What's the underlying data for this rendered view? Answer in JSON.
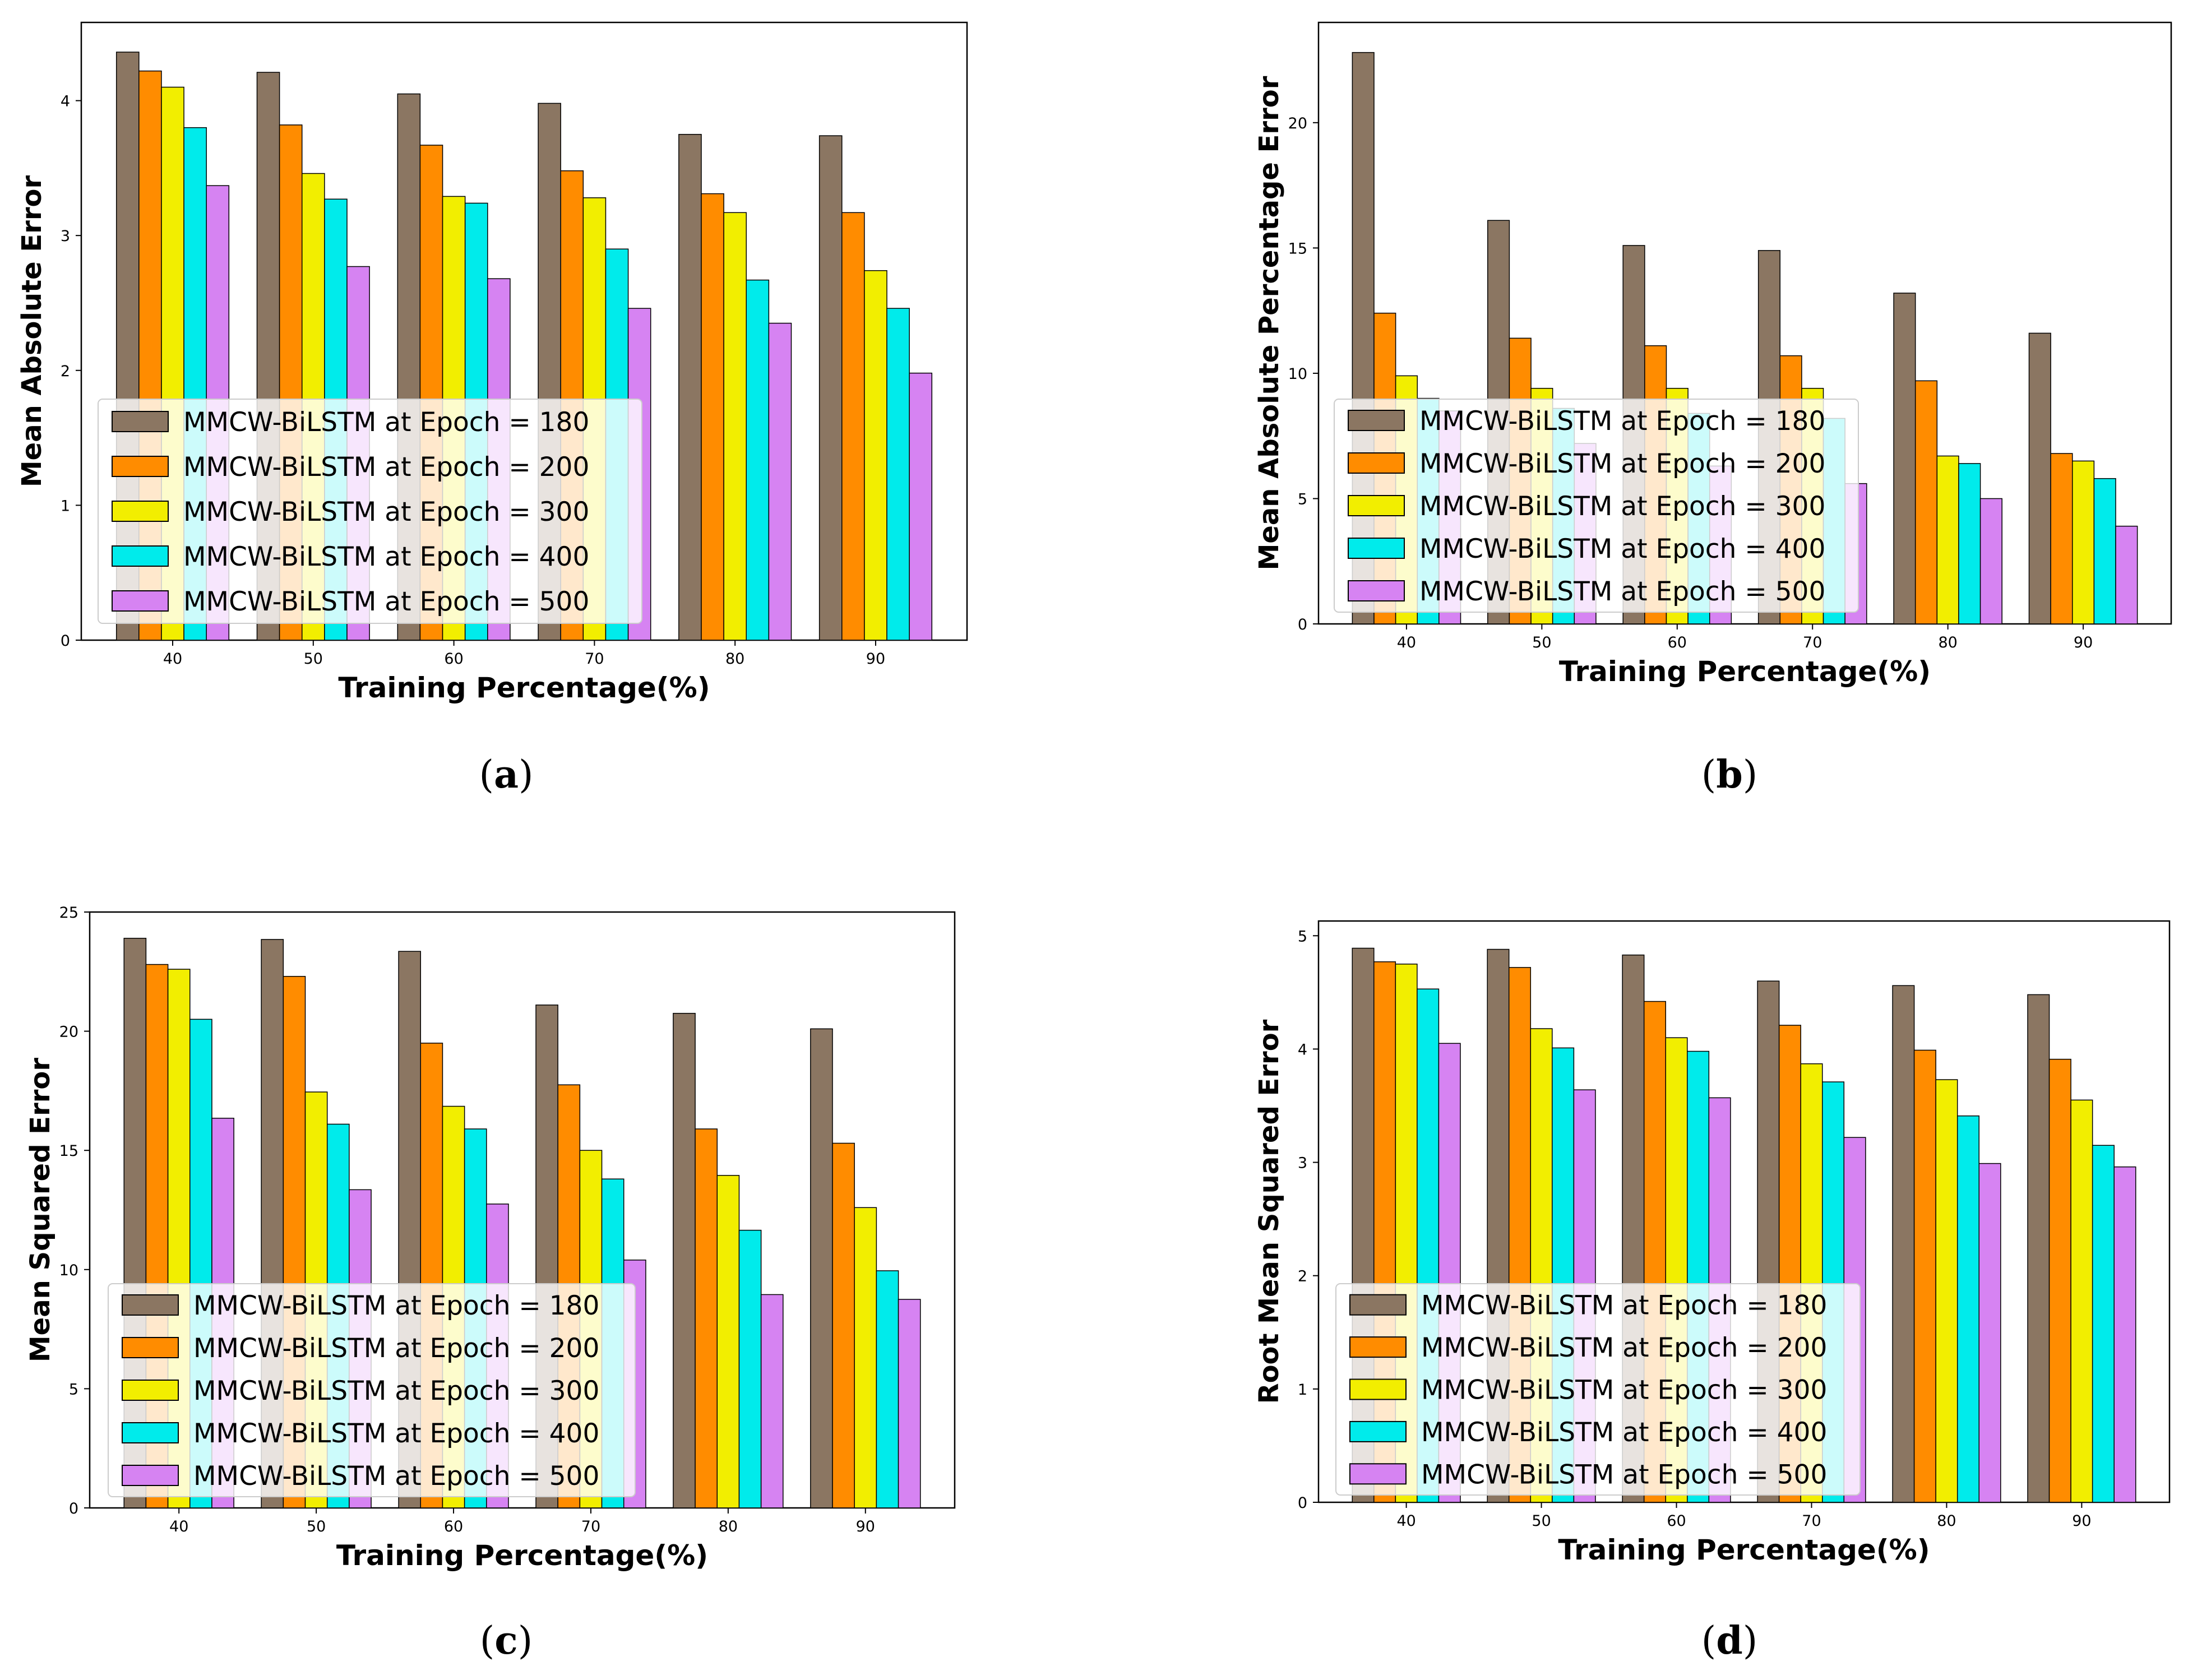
{
  "colors": {
    "epoch_180": "#8b7662",
    "epoch_200": "#ff8c00",
    "epoch_300": "#f2ee00",
    "epoch_400": "#00ebeb",
    "epoch_500": "#d683f2",
    "bar_edge": "#000000",
    "legend_edge": "#cccccc"
  },
  "panels": [
    {
      "caption": "(a)",
      "caption_open": "(",
      "caption_letter": "a",
      "caption_close": ")",
      "chart_data": {
        "type": "bar",
        "title": "",
        "xlabel": "Training Percentage(%)",
        "ylabel": "Mean Absolute Error",
        "categories": [
          "40",
          "50",
          "60",
          "70",
          "80",
          "90"
        ],
        "ylim": [
          0,
          4.58
        ],
        "yticks": [
          0,
          1,
          2,
          3,
          4
        ],
        "legend_position": "lower-left",
        "series": [
          {
            "name": "MMCW-BiLSTM at Epoch = 180",
            "values": [
              4.36,
              4.21,
              4.05,
              3.98,
              3.75,
              3.74
            ]
          },
          {
            "name": "MMCW-BiLSTM at Epoch = 200",
            "values": [
              4.22,
              3.82,
              3.67,
              3.48,
              3.31,
              3.17
            ]
          },
          {
            "name": "MMCW-BiLSTM at Epoch = 300",
            "values": [
              4.1,
              3.46,
              3.29,
              3.28,
              3.17,
              2.74
            ]
          },
          {
            "name": "MMCW-BiLSTM at Epoch = 400",
            "values": [
              3.8,
              3.27,
              3.24,
              2.9,
              2.67,
              2.46
            ]
          },
          {
            "name": "MMCW-BiLSTM at Epoch = 500",
            "values": [
              3.37,
              2.77,
              2.68,
              2.46,
              2.35,
              1.98
            ]
          }
        ]
      }
    },
    {
      "caption": "(b)",
      "caption_open": "(",
      "caption_letter": "b",
      "caption_close": ")",
      "chart_data": {
        "type": "bar",
        "title": "",
        "xlabel": "Training Percentage(%)",
        "ylabel": "Mean Absolute Percentage Error",
        "categories": [
          "40",
          "50",
          "60",
          "70",
          "80",
          "90"
        ],
        "ylim": [
          0,
          24.0
        ],
        "yticks": [
          0,
          5,
          10,
          15,
          20
        ],
        "legend_position": "lower-left",
        "series": [
          {
            "name": "MMCW-BiLSTM at Epoch = 180",
            "values": [
              22.8,
              16.1,
              15.1,
              14.9,
              13.2,
              11.6
            ]
          },
          {
            "name": "MMCW-BiLSTM at Epoch = 200",
            "values": [
              12.4,
              11.4,
              11.1,
              10.7,
              9.7,
              6.8
            ]
          },
          {
            "name": "MMCW-BiLSTM at Epoch = 300",
            "values": [
              9.9,
              9.4,
              9.4,
              9.4,
              6.7,
              6.5
            ]
          },
          {
            "name": "MMCW-BiLSTM at Epoch = 400",
            "values": [
              9.0,
              8.6,
              8.4,
              8.2,
              6.4,
              5.8
            ]
          },
          {
            "name": "MMCW-BiLSTM at Epoch = 500",
            "values": [
              8.5,
              7.2,
              6.3,
              5.6,
              5.0,
              3.9
            ]
          }
        ]
      }
    },
    {
      "caption": "(c)",
      "caption_open": "(",
      "caption_letter": "c",
      "caption_close": ")",
      "chart_data": {
        "type": "bar",
        "title": "",
        "xlabel": "Training Percentage(%)",
        "ylabel": "Mean Squared Error",
        "categories": [
          "40",
          "50",
          "60",
          "70",
          "80",
          "90"
        ],
        "ylim": [
          0,
          25.0
        ],
        "yticks": [
          0,
          5,
          10,
          15,
          20,
          25
        ],
        "legend_position": "lower-left",
        "series": [
          {
            "name": "MMCW-BiLSTM at Epoch = 180",
            "values": [
              23.9,
              23.85,
              23.35,
              21.1,
              20.75,
              20.1
            ]
          },
          {
            "name": "MMCW-BiLSTM at Epoch = 200",
            "values": [
              22.8,
              22.3,
              19.5,
              17.75,
              15.9,
              15.3
            ]
          },
          {
            "name": "MMCW-BiLSTM at Epoch = 300",
            "values": [
              22.6,
              17.45,
              16.85,
              15.0,
              13.95,
              12.6
            ]
          },
          {
            "name": "MMCW-BiLSTM at Epoch = 400",
            "values": [
              20.5,
              16.1,
              15.9,
              13.8,
              11.65,
              9.95
            ]
          },
          {
            "name": "MMCW-BiLSTM at Epoch = 500",
            "values": [
              16.35,
              13.35,
              12.75,
              10.4,
              8.95,
              8.75
            ]
          }
        ]
      }
    },
    {
      "caption": "(d)",
      "caption_open": "(",
      "caption_letter": "d",
      "caption_close": ")",
      "chart_data": {
        "type": "bar",
        "title": "",
        "xlabel": "Training Percentage(%)",
        "ylabel": "Root Mean Squared Error",
        "categories": [
          "40",
          "50",
          "60",
          "70",
          "80",
          "90"
        ],
        "ylim": [
          0,
          5.13
        ],
        "yticks": [
          0,
          1,
          2,
          3,
          4,
          5
        ],
        "legend_position": "lower-left",
        "series": [
          {
            "name": "MMCW-BiLSTM at Epoch = 180",
            "values": [
              4.89,
              4.88,
              4.83,
              4.6,
              4.56,
              4.48
            ]
          },
          {
            "name": "MMCW-BiLSTM at Epoch = 200",
            "values": [
              4.77,
              4.72,
              4.42,
              4.21,
              3.99,
              3.91
            ]
          },
          {
            "name": "MMCW-BiLSTM at Epoch = 300",
            "values": [
              4.75,
              4.18,
              4.1,
              3.87,
              3.73,
              3.55
            ]
          },
          {
            "name": "MMCW-BiLSTM at Epoch = 400",
            "values": [
              4.53,
              4.01,
              3.98,
              3.71,
              3.41,
              3.15
            ]
          },
          {
            "name": "MMCW-BiLSTM at Epoch = 500",
            "values": [
              4.05,
              3.64,
              3.57,
              3.22,
              2.99,
              2.96
            ]
          }
        ]
      }
    }
  ]
}
